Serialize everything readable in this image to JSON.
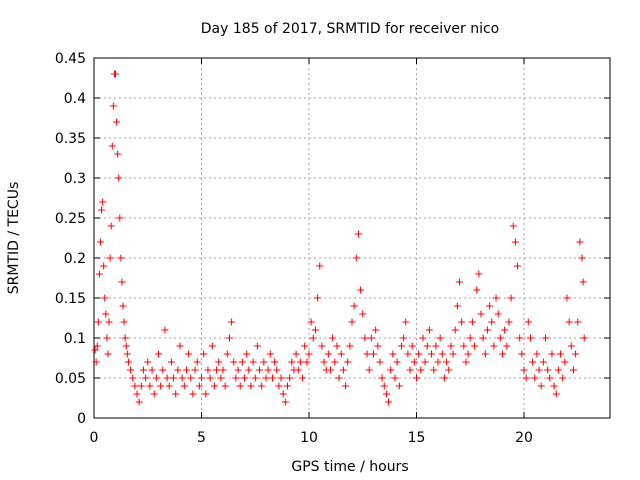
{
  "chart_data": {
    "type": "scatter",
    "title": "Day 185 of 2017, SRMTID for receiver nico",
    "xlabel": "GPS time / hours",
    "ylabel": "SRMTID / TECUs",
    "xlim": [
      0,
      24
    ],
    "ylim": [
      0,
      0.45
    ],
    "xticks": [
      0,
      5,
      10,
      15,
      20
    ],
    "xtick_labels": [
      "0",
      "5",
      "10",
      "15",
      "20"
    ],
    "yticks": [
      0,
      0.05,
      0.1,
      0.15,
      0.2,
      0.25,
      0.3,
      0.35,
      0.4,
      0.45
    ],
    "ytick_labels": [
      "0",
      "0.05",
      "0.1",
      "0.15",
      "0.2",
      "0.25",
      "0.3",
      "0.35",
      "0.4",
      "0.45"
    ],
    "grid": true,
    "marker": "+",
    "color": "#ff0000",
    "series": [
      {
        "name": "SRMTID",
        "points": [
          [
            0.05,
            0.085
          ],
          [
            0.1,
            0.07
          ],
          [
            0.15,
            0.09
          ],
          [
            0.2,
            0.12
          ],
          [
            0.25,
            0.18
          ],
          [
            0.3,
            0.22
          ],
          [
            0.35,
            0.26
          ],
          [
            0.4,
            0.27
          ],
          [
            0.45,
            0.19
          ],
          [
            0.5,
            0.15
          ],
          [
            0.55,
            0.13
          ],
          [
            0.6,
            0.1
          ],
          [
            0.65,
            0.08
          ],
          [
            0.7,
            0.12
          ],
          [
            0.75,
            0.2
          ],
          [
            0.8,
            0.24
          ],
          [
            0.85,
            0.34
          ],
          [
            0.9,
            0.39
          ],
          [
            0.95,
            0.43
          ],
          [
            1.0,
            0.43
          ],
          [
            1.05,
            0.37
          ],
          [
            1.1,
            0.33
          ],
          [
            1.15,
            0.3
          ],
          [
            1.2,
            0.25
          ],
          [
            1.25,
            0.2
          ],
          [
            1.3,
            0.17
          ],
          [
            1.35,
            0.14
          ],
          [
            1.4,
            0.12
          ],
          [
            1.45,
            0.1
          ],
          [
            1.5,
            0.09
          ],
          [
            1.55,
            0.08
          ],
          [
            1.6,
            0.07
          ],
          [
            1.7,
            0.06
          ],
          [
            1.8,
            0.05
          ],
          [
            1.9,
            0.04
          ],
          [
            2.0,
            0.03
          ],
          [
            2.1,
            0.02
          ],
          [
            2.2,
            0.04
          ],
          [
            2.3,
            0.06
          ],
          [
            2.4,
            0.05
          ],
          [
            2.5,
            0.07
          ],
          [
            2.6,
            0.04
          ],
          [
            2.7,
            0.06
          ],
          [
            2.8,
            0.03
          ],
          [
            2.9,
            0.05
          ],
          [
            3.0,
            0.08
          ],
          [
            3.1,
            0.04
          ],
          [
            3.2,
            0.06
          ],
          [
            3.3,
            0.11
          ],
          [
            3.4,
            0.05
          ],
          [
            3.5,
            0.04
          ],
          [
            3.6,
            0.07
          ],
          [
            3.7,
            0.05
          ],
          [
            3.8,
            0.03
          ],
          [
            3.9,
            0.06
          ],
          [
            4.0,
            0.09
          ],
          [
            4.1,
            0.05
          ],
          [
            4.2,
            0.04
          ],
          [
            4.3,
            0.06
          ],
          [
            4.4,
            0.08
          ],
          [
            4.5,
            0.05
          ],
          [
            4.6,
            0.03
          ],
          [
            4.7,
            0.06
          ],
          [
            4.8,
            0.07
          ],
          [
            4.9,
            0.04
          ],
          [
            5.0,
            0.05
          ],
          [
            5.1,
            0.08
          ],
          [
            5.2,
            0.03
          ],
          [
            5.3,
            0.06
          ],
          [
            5.4,
            0.05
          ],
          [
            5.5,
            0.09
          ],
          [
            5.6,
            0.04
          ],
          [
            5.7,
            0.06
          ],
          [
            5.8,
            0.07
          ],
          [
            5.9,
            0.05
          ],
          [
            6.0,
            0.06
          ],
          [
            6.1,
            0.04
          ],
          [
            6.2,
            0.08
          ],
          [
            6.3,
            0.1
          ],
          [
            6.4,
            0.12
          ],
          [
            6.5,
            0.07
          ],
          [
            6.6,
            0.05
          ],
          [
            6.7,
            0.06
          ],
          [
            6.8,
            0.04
          ],
          [
            6.9,
            0.07
          ],
          [
            7.0,
            0.05
          ],
          [
            7.1,
            0.08
          ],
          [
            7.2,
            0.06
          ],
          [
            7.3,
            0.04
          ],
          [
            7.4,
            0.07
          ],
          [
            7.5,
            0.05
          ],
          [
            7.6,
            0.09
          ],
          [
            7.7,
            0.06
          ],
          [
            7.8,
            0.04
          ],
          [
            7.9,
            0.07
          ],
          [
            8.0,
            0.05
          ],
          [
            8.1,
            0.06
          ],
          [
            8.2,
            0.08
          ],
          [
            8.3,
            0.05
          ],
          [
            8.4,
            0.07
          ],
          [
            8.5,
            0.06
          ],
          [
            8.6,
            0.04
          ],
          [
            8.7,
            0.05
          ],
          [
            8.8,
            0.03
          ],
          [
            8.9,
            0.02
          ],
          [
            9.0,
            0.04
          ],
          [
            9.1,
            0.05
          ],
          [
            9.2,
            0.07
          ],
          [
            9.3,
            0.06
          ],
          [
            9.4,
            0.08
          ],
          [
            9.5,
            0.06
          ],
          [
            9.6,
            0.07
          ],
          [
            9.7,
            0.05
          ],
          [
            9.8,
            0.09
          ],
          [
            9.9,
            0.07
          ],
          [
            10.0,
            0.08
          ],
          [
            10.1,
            0.12
          ],
          [
            10.2,
            0.1
          ],
          [
            10.3,
            0.11
          ],
          [
            10.4,
            0.15
          ],
          [
            10.5,
            0.19
          ],
          [
            10.6,
            0.09
          ],
          [
            10.7,
            0.07
          ],
          [
            10.8,
            0.06
          ],
          [
            10.9,
            0.08
          ],
          [
            11.0,
            0.06
          ],
          [
            11.1,
            0.1
          ],
          [
            11.2,
            0.07
          ],
          [
            11.3,
            0.09
          ],
          [
            11.4,
            0.05
          ],
          [
            11.5,
            0.08
          ],
          [
            11.6,
            0.06
          ],
          [
            11.7,
            0.04
          ],
          [
            11.8,
            0.07
          ],
          [
            11.9,
            0.09
          ],
          [
            12.0,
            0.12
          ],
          [
            12.1,
            0.14
          ],
          [
            12.2,
            0.2
          ],
          [
            12.3,
            0.23
          ],
          [
            12.4,
            0.16
          ],
          [
            12.5,
            0.13
          ],
          [
            12.6,
            0.1
          ],
          [
            12.7,
            0.08
          ],
          [
            12.8,
            0.06
          ],
          [
            12.9,
            0.1
          ],
          [
            13.0,
            0.08
          ],
          [
            13.1,
            0.11
          ],
          [
            13.2,
            0.09
          ],
          [
            13.3,
            0.07
          ],
          [
            13.4,
            0.05
          ],
          [
            13.5,
            0.04
          ],
          [
            13.6,
            0.03
          ],
          [
            13.7,
            0.02
          ],
          [
            13.8,
            0.06
          ],
          [
            13.9,
            0.08
          ],
          [
            14.0,
            0.05
          ],
          [
            14.1,
            0.07
          ],
          [
            14.2,
            0.04
          ],
          [
            14.3,
            0.09
          ],
          [
            14.4,
            0.1
          ],
          [
            14.5,
            0.12
          ],
          [
            14.6,
            0.08
          ],
          [
            14.7,
            0.06
          ],
          [
            14.8,
            0.09
          ],
          [
            14.9,
            0.07
          ],
          [
            15.0,
            0.05
          ],
          [
            15.1,
            0.08
          ],
          [
            15.2,
            0.06
          ],
          [
            15.3,
            0.1
          ],
          [
            15.4,
            0.07
          ],
          [
            15.5,
            0.09
          ],
          [
            15.6,
            0.11
          ],
          [
            15.7,
            0.08
          ],
          [
            15.8,
            0.06
          ],
          [
            15.9,
            0.09
          ],
          [
            16.0,
            0.07
          ],
          [
            16.1,
            0.1
          ],
          [
            16.2,
            0.08
          ],
          [
            16.3,
            0.05
          ],
          [
            16.4,
            0.07
          ],
          [
            16.5,
            0.06
          ],
          [
            16.6,
            0.09
          ],
          [
            16.7,
            0.08
          ],
          [
            16.8,
            0.11
          ],
          [
            16.9,
            0.14
          ],
          [
            17.0,
            0.17
          ],
          [
            17.1,
            0.12
          ],
          [
            17.2,
            0.09
          ],
          [
            17.3,
            0.07
          ],
          [
            17.4,
            0.08
          ],
          [
            17.5,
            0.1
          ],
          [
            17.6,
            0.12
          ],
          [
            17.7,
            0.09
          ],
          [
            17.8,
            0.16
          ],
          [
            17.9,
            0.18
          ],
          [
            18.0,
            0.13
          ],
          [
            18.1,
            0.1
          ],
          [
            18.2,
            0.08
          ],
          [
            18.3,
            0.11
          ],
          [
            18.4,
            0.14
          ],
          [
            18.5,
            0.12
          ],
          [
            18.6,
            0.09
          ],
          [
            18.7,
            0.15
          ],
          [
            18.8,
            0.13
          ],
          [
            18.9,
            0.1
          ],
          [
            19.0,
            0.08
          ],
          [
            19.1,
            0.11
          ],
          [
            19.2,
            0.09
          ],
          [
            19.3,
            0.12
          ],
          [
            19.4,
            0.15
          ],
          [
            19.5,
            0.24
          ],
          [
            19.6,
            0.22
          ],
          [
            19.7,
            0.19
          ],
          [
            19.8,
            0.1
          ],
          [
            19.9,
            0.08
          ],
          [
            20.0,
            0.06
          ],
          [
            20.1,
            0.05
          ],
          [
            20.2,
            0.12
          ],
          [
            20.3,
            0.1
          ],
          [
            20.4,
            0.07
          ],
          [
            20.5,
            0.05
          ],
          [
            20.6,
            0.08
          ],
          [
            20.7,
            0.06
          ],
          [
            20.8,
            0.04
          ],
          [
            20.9,
            0.07
          ],
          [
            21.0,
            0.1
          ],
          [
            21.1,
            0.06
          ],
          [
            21.2,
            0.05
          ],
          [
            21.3,
            0.08
          ],
          [
            21.4,
            0.04
          ],
          [
            21.5,
            0.03
          ],
          [
            21.6,
            0.06
          ],
          [
            21.7,
            0.08
          ],
          [
            21.8,
            0.05
          ],
          [
            21.9,
            0.07
          ],
          [
            22.0,
            0.15
          ],
          [
            22.1,
            0.12
          ],
          [
            22.2,
            0.09
          ],
          [
            22.3,
            0.06
          ],
          [
            22.4,
            0.08
          ],
          [
            22.5,
            0.12
          ],
          [
            22.6,
            0.22
          ],
          [
            22.7,
            0.2
          ],
          [
            22.75,
            0.17
          ],
          [
            22.8,
            0.1
          ]
        ]
      }
    ]
  }
}
